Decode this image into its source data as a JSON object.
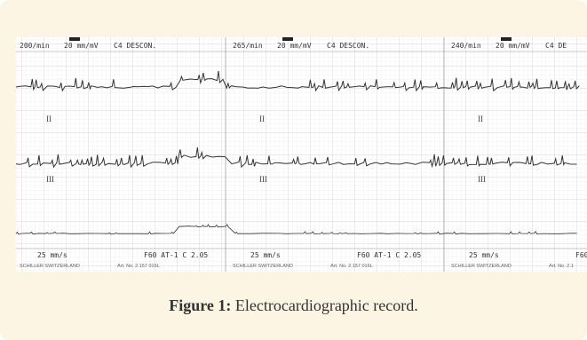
{
  "figure": {
    "ecg": {
      "segments": [
        {
          "rate": "200/min",
          "gain": "20 mm/mV",
          "filter": "C4 DESCON.",
          "lead_upper": "II",
          "lead_lower": "III",
          "speed": "25 mm/s",
          "device": "F60 AT-1 C 2.05",
          "maker": "SCHILLER SWITZERLAND",
          "article": "Art. No. 2.157 016L"
        },
        {
          "rate": "265/min",
          "gain": "20 mm/mV",
          "filter": "C4 DESCON.",
          "lead_upper": "II",
          "lead_lower": "III",
          "speed": "25 mm/s",
          "device": "F60 AT-1 C 2.05",
          "maker": "SCHILLER SWITZERLAND",
          "article": "Art. No. 2.157 016L"
        },
        {
          "rate": "240/min",
          "gain": "20 mm/mV",
          "filter": "C4 DE",
          "lead_upper": "II",
          "lead_lower": "III",
          "speed": "25 mm/s",
          "device": "F60",
          "maker": "SCHILLER SWITZERLAND",
          "article": "Art. No. 2.1"
        }
      ]
    },
    "caption": {
      "label": "Figure 1:",
      "text": "Electrocardiographic record."
    }
  }
}
